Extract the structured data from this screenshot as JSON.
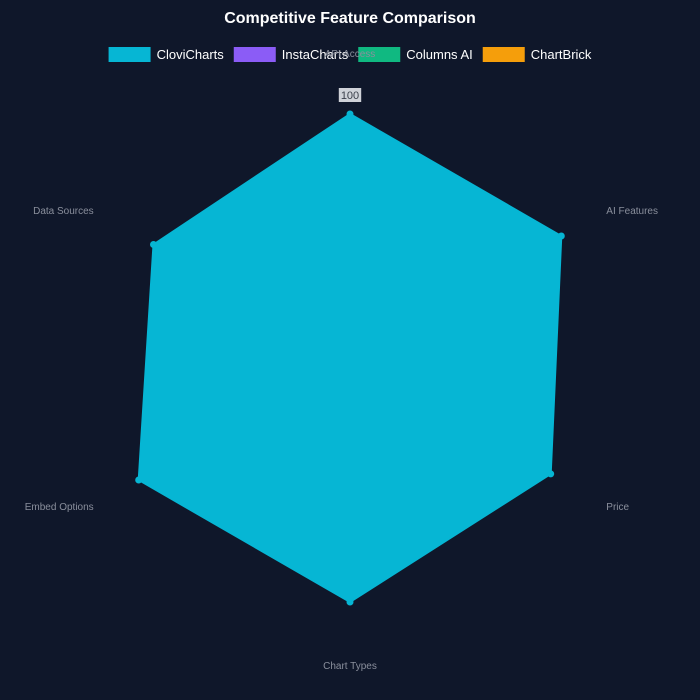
{
  "chart_data": {
    "type": "radar",
    "title": "Competitive Feature Comparison",
    "axes": [
      "API Access",
      "AI Features",
      "Price",
      "Chart Types",
      "Embed Options",
      "Data Sources"
    ],
    "scale": {
      "min": 0,
      "max": 100
    },
    "ticks": [
      {
        "value": 100,
        "label": "100"
      }
    ],
    "legend_position": "top",
    "series": [
      {
        "name": "CloviCharts",
        "color": "#06b6d4",
        "values": [
          100,
          100,
          95,
          100,
          100,
          93
        ]
      },
      {
        "name": "InstaCharts",
        "color": "#8b5cf6",
        "values": [
          0,
          0,
          0,
          0,
          0,
          0
        ]
      },
      {
        "name": "Columns AI",
        "color": "#10b981",
        "values": [
          0,
          0,
          0,
          0,
          0,
          0
        ]
      },
      {
        "name": "ChartBrick",
        "color": "#f59e0b",
        "values": [
          0,
          0,
          0,
          0,
          0,
          0
        ]
      }
    ]
  }
}
